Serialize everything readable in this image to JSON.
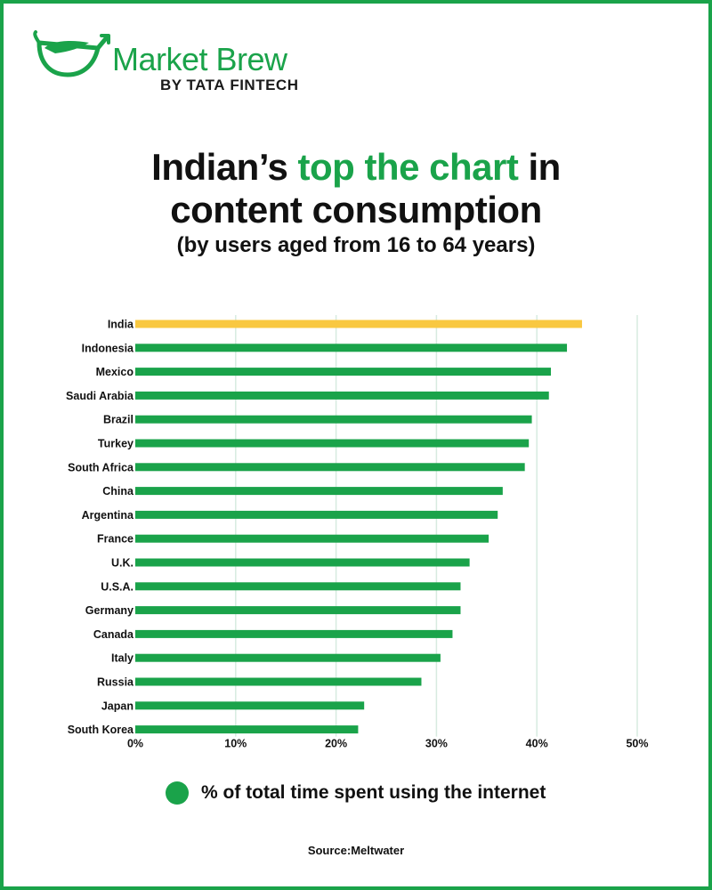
{
  "brand": {
    "name": "Market Brew",
    "by_prefix": "BY",
    "by_bold": "TATA",
    "by_suffix": "FINTECH",
    "color": "#1aa34a"
  },
  "title": {
    "part1": "Indian’s",
    "highlight": "top the chart",
    "part2": "in",
    "line2": "content consumption"
  },
  "subtitle": "(by users aged from 16 to 64 years)",
  "legend": {
    "label": "% of total time spent using the internet",
    "color": "#1aa34a"
  },
  "source": "Source:Meltwater",
  "chart_data": {
    "type": "bar",
    "orientation": "horizontal",
    "categories": [
      "India",
      "Indonesia",
      "Mexico",
      "Saudi Arabia",
      "Brazil",
      "Turkey",
      "South Africa",
      "China",
      "Argentina",
      "France",
      "U.K.",
      "U.S.A.",
      "Germany",
      "Canada",
      "Italy",
      "Russia",
      "Japan",
      "South Korea"
    ],
    "values": [
      44.5,
      43.0,
      41.4,
      41.2,
      39.5,
      39.2,
      38.8,
      36.6,
      36.1,
      35.2,
      33.3,
      32.4,
      32.4,
      31.6,
      30.4,
      28.5,
      22.8,
      22.2
    ],
    "highlight_index": 0,
    "highlight_color": "#f9c840",
    "bar_color": "#1aa34a",
    "xlim": [
      0,
      50
    ],
    "xticks": [
      0,
      10,
      20,
      30,
      40,
      50
    ],
    "xtick_labels": [
      "0%",
      "10%",
      "20%",
      "30%",
      "40%",
      "50%"
    ],
    "grid": true,
    "series_name": "% of total time spent using the internet"
  }
}
